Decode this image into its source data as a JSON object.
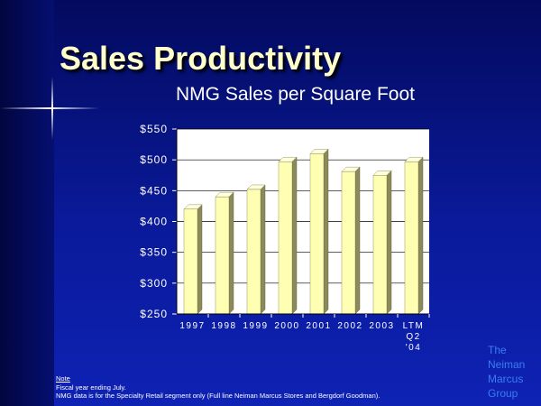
{
  "slide": {
    "title": "Sales Productivity",
    "notes_heading": "Note",
    "notes": [
      "Fiscal year ending July.",
      "NMG data is for the Specialty Retail segment only (Full line Neiman Marcus Stores and Bergdorf Goodman)."
    ],
    "company_lines": [
      "The",
      "Neiman",
      "Marcus",
      "Group"
    ]
  },
  "chart_data": {
    "type": "bar",
    "title": "NMG Sales per Square Foot",
    "categories": [
      [
        "1997"
      ],
      [
        "1998"
      ],
      [
        "1999"
      ],
      [
        "2000"
      ],
      [
        "2001"
      ],
      [
        "2002"
      ],
      [
        "2003"
      ],
      [
        "LTM",
        "Q2",
        "'04"
      ]
    ],
    "values": [
      420,
      440,
      452,
      497,
      510,
      481,
      475,
      497
    ],
    "ylim": [
      250,
      550
    ],
    "yticks": [
      250,
      300,
      350,
      400,
      450,
      500,
      550
    ],
    "ytick_labels": [
      "$250",
      "$300",
      "$350",
      "$400",
      "$450",
      "$500",
      "$550"
    ],
    "xlabel": "",
    "ylabel": "",
    "grid": true,
    "colors": {
      "bar_front": "#ffffb4",
      "bar_side": "#8a8a5a",
      "bar_top": "#ffffe0",
      "plot_bg": "#ffffff",
      "grid": "#000000"
    }
  }
}
